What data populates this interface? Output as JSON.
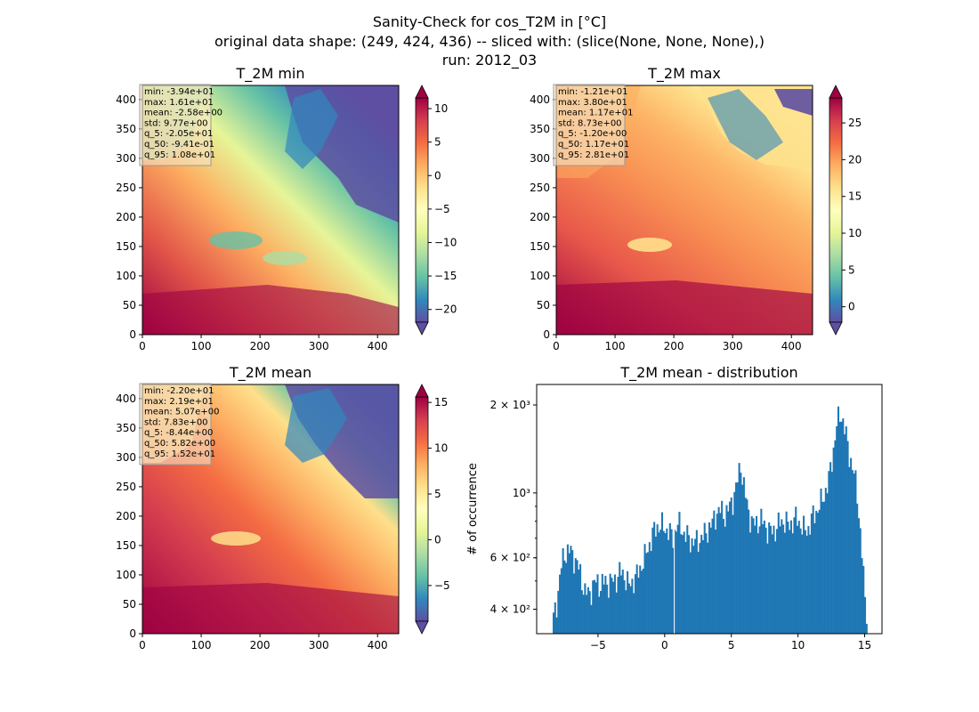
{
  "figure": {
    "title_lines": [
      "Sanity-Check for cos_T2M in [°C]",
      "original data shape: (249, 424, 436) -- sliced with: (slice(None, None, None),)",
      "run: 2012_03"
    ]
  },
  "chart_data": [
    {
      "type": "heatmap",
      "title": "T_2M min",
      "x_ticks": [
        "0",
        "100",
        "200",
        "300",
        "400"
      ],
      "y_ticks": [
        "0",
        "50",
        "100",
        "150",
        "200",
        "250",
        "300",
        "350",
        "400"
      ],
      "xlim": [
        0,
        436
      ],
      "ylim": [
        0,
        424
      ],
      "colormap": "Spectral_r",
      "colorbar": {
        "ticks": [
          "10",
          "5",
          "0",
          "−5",
          "−10",
          "−15",
          "−20"
        ],
        "values": [
          10,
          5,
          0,
          -5,
          -10,
          -15,
          -20
        ],
        "range": [
          -21.9,
          11.6
        ],
        "extend": "both"
      },
      "stats": [
        "min: -3.94e+01",
        "max: 1.61e+01",
        "mean: -2.58e+00",
        "std: 9.77e+00",
        "q_5: -2.05e+01",
        "q_50: -9.41e-01",
        "q_95: 1.08e+01"
      ]
    },
    {
      "type": "heatmap",
      "title": "T_2M max",
      "x_ticks": [
        "0",
        "100",
        "200",
        "300",
        "400"
      ],
      "y_ticks": [
        "0",
        "50",
        "100",
        "150",
        "200",
        "250",
        "300",
        "350",
        "400"
      ],
      "xlim": [
        0,
        436
      ],
      "ylim": [
        0,
        424
      ],
      "colormap": "Spectral_r",
      "colorbar": {
        "ticks": [
          "25",
          "20",
          "15",
          "10",
          "5",
          "0"
        ],
        "values": [
          25,
          20,
          15,
          10,
          5,
          0
        ],
        "range": [
          -2.1,
          28.4
        ],
        "extend": "both"
      },
      "stats": [
        "min: -1.21e+01",
        "max: 3.80e+01",
        "mean: 1.17e+01",
        "std: 8.73e+00",
        "q_5: -1.20e+00",
        "q_50: 1.17e+01",
        "q_95: 2.81e+01"
      ]
    },
    {
      "type": "heatmap",
      "title": "T_2M mean",
      "x_ticks": [
        "0",
        "100",
        "200",
        "300",
        "400"
      ],
      "y_ticks": [
        "0",
        "50",
        "100",
        "150",
        "200",
        "250",
        "300",
        "350",
        "400"
      ],
      "xlim": [
        0,
        436
      ],
      "ylim": [
        0,
        424
      ],
      "colormap": "Spectral_r",
      "colorbar": {
        "ticks": [
          "15",
          "10",
          "5",
          "0",
          "−5"
        ],
        "values": [
          15,
          10,
          5,
          0,
          -5
        ],
        "range": [
          -8.9,
          15.6
        ],
        "extend": "both"
      },
      "stats": [
        "min: -2.20e+01",
        "max: 2.19e+01",
        "mean: 5.07e+00",
        "std: 7.83e+00",
        "q_5: -8.44e+00",
        "q_50: 5.82e+00",
        "q_95: 1.52e+01"
      ]
    },
    {
      "type": "bar",
      "title": "T_2M mean - distribution",
      "ylabel": "# of occurrence",
      "yscale": "log",
      "x_ticks": [
        "−5",
        "0",
        "5",
        "10",
        "15"
      ],
      "x_tick_values": [
        -5,
        0,
        5,
        10,
        15
      ],
      "y_ticks": [
        "4 × 10²",
        "6 × 10²",
        "10³",
        "2 × 10³"
      ],
      "y_tick_values": [
        400,
        600,
        1000,
        2000
      ],
      "xlim": [
        -9.6,
        16.3
      ],
      "ylim": [
        330,
        2350
      ],
      "bin_range": [
        -8.4,
        15.2
      ],
      "histogram_profile": [
        [
          -8.4,
          360
        ],
        [
          -8.1,
          420
        ],
        [
          -7.8,
          550
        ],
        [
          -7.5,
          620
        ],
        [
          -7.2,
          640
        ],
        [
          -6.9,
          610
        ],
        [
          -6.6,
          580
        ],
        [
          -6.3,
          520
        ],
        [
          -6.0,
          460
        ],
        [
          -5.7,
          450
        ],
        [
          -5.4,
          480
        ],
        [
          -5.1,
          500
        ],
        [
          -4.8,
          480
        ],
        [
          -4.5,
          500
        ],
        [
          -4.2,
          490
        ],
        [
          -3.9,
          500
        ],
        [
          -3.6,
          510
        ],
        [
          -3.3,
          540
        ],
        [
          -3.0,
          520
        ],
        [
          -2.7,
          480
        ],
        [
          -2.4,
          500
        ],
        [
          -2.1,
          520
        ],
        [
          -1.8,
          560
        ],
        [
          -1.5,
          600
        ],
        [
          -1.2,
          660
        ],
        [
          -0.9,
          720
        ],
        [
          -0.6,
          770
        ],
        [
          -0.3,
          770
        ],
        [
          0.0,
          760
        ],
        [
          0.3,
          740
        ],
        [
          0.6,
          700
        ],
        [
          0.9,
          780
        ],
        [
          1.2,
          770
        ],
        [
          1.5,
          720
        ],
        [
          1.8,
          700
        ],
        [
          2.1,
          680
        ],
        [
          2.4,
          680
        ],
        [
          2.7,
          700
        ],
        [
          3.0,
          720
        ],
        [
          3.3,
          760
        ],
        [
          3.6,
          790
        ],
        [
          3.9,
          860
        ],
        [
          4.2,
          870
        ],
        [
          4.5,
          840
        ],
        [
          4.8,
          880
        ],
        [
          5.1,
          950
        ],
        [
          5.4,
          1060
        ],
        [
          5.7,
          1260
        ],
        [
          6.0,
          1000
        ],
        [
          6.3,
          860
        ],
        [
          6.6,
          780
        ],
        [
          6.9,
          790
        ],
        [
          7.2,
          810
        ],
        [
          7.5,
          780
        ],
        [
          7.8,
          740
        ],
        [
          8.1,
          740
        ],
        [
          8.4,
          760
        ],
        [
          8.7,
          800
        ],
        [
          9.0,
          800
        ],
        [
          9.3,
          770
        ],
        [
          9.6,
          800
        ],
        [
          9.9,
          820
        ],
        [
          10.2,
          780
        ],
        [
          10.5,
          740
        ],
        [
          10.8,
          760
        ],
        [
          11.1,
          830
        ],
        [
          11.4,
          870
        ],
        [
          11.7,
          920
        ],
        [
          12.0,
          1000
        ],
        [
          12.3,
          1100
        ],
        [
          12.6,
          1350
        ],
        [
          12.9,
          1700
        ],
        [
          13.2,
          1900
        ],
        [
          13.5,
          1650
        ],
        [
          13.8,
          1400
        ],
        [
          14.1,
          1200
        ],
        [
          14.4,
          1050
        ],
        [
          14.7,
          700
        ],
        [
          15.0,
          450
        ],
        [
          15.2,
          380
        ]
      ],
      "color": "#1f77b4"
    }
  ]
}
